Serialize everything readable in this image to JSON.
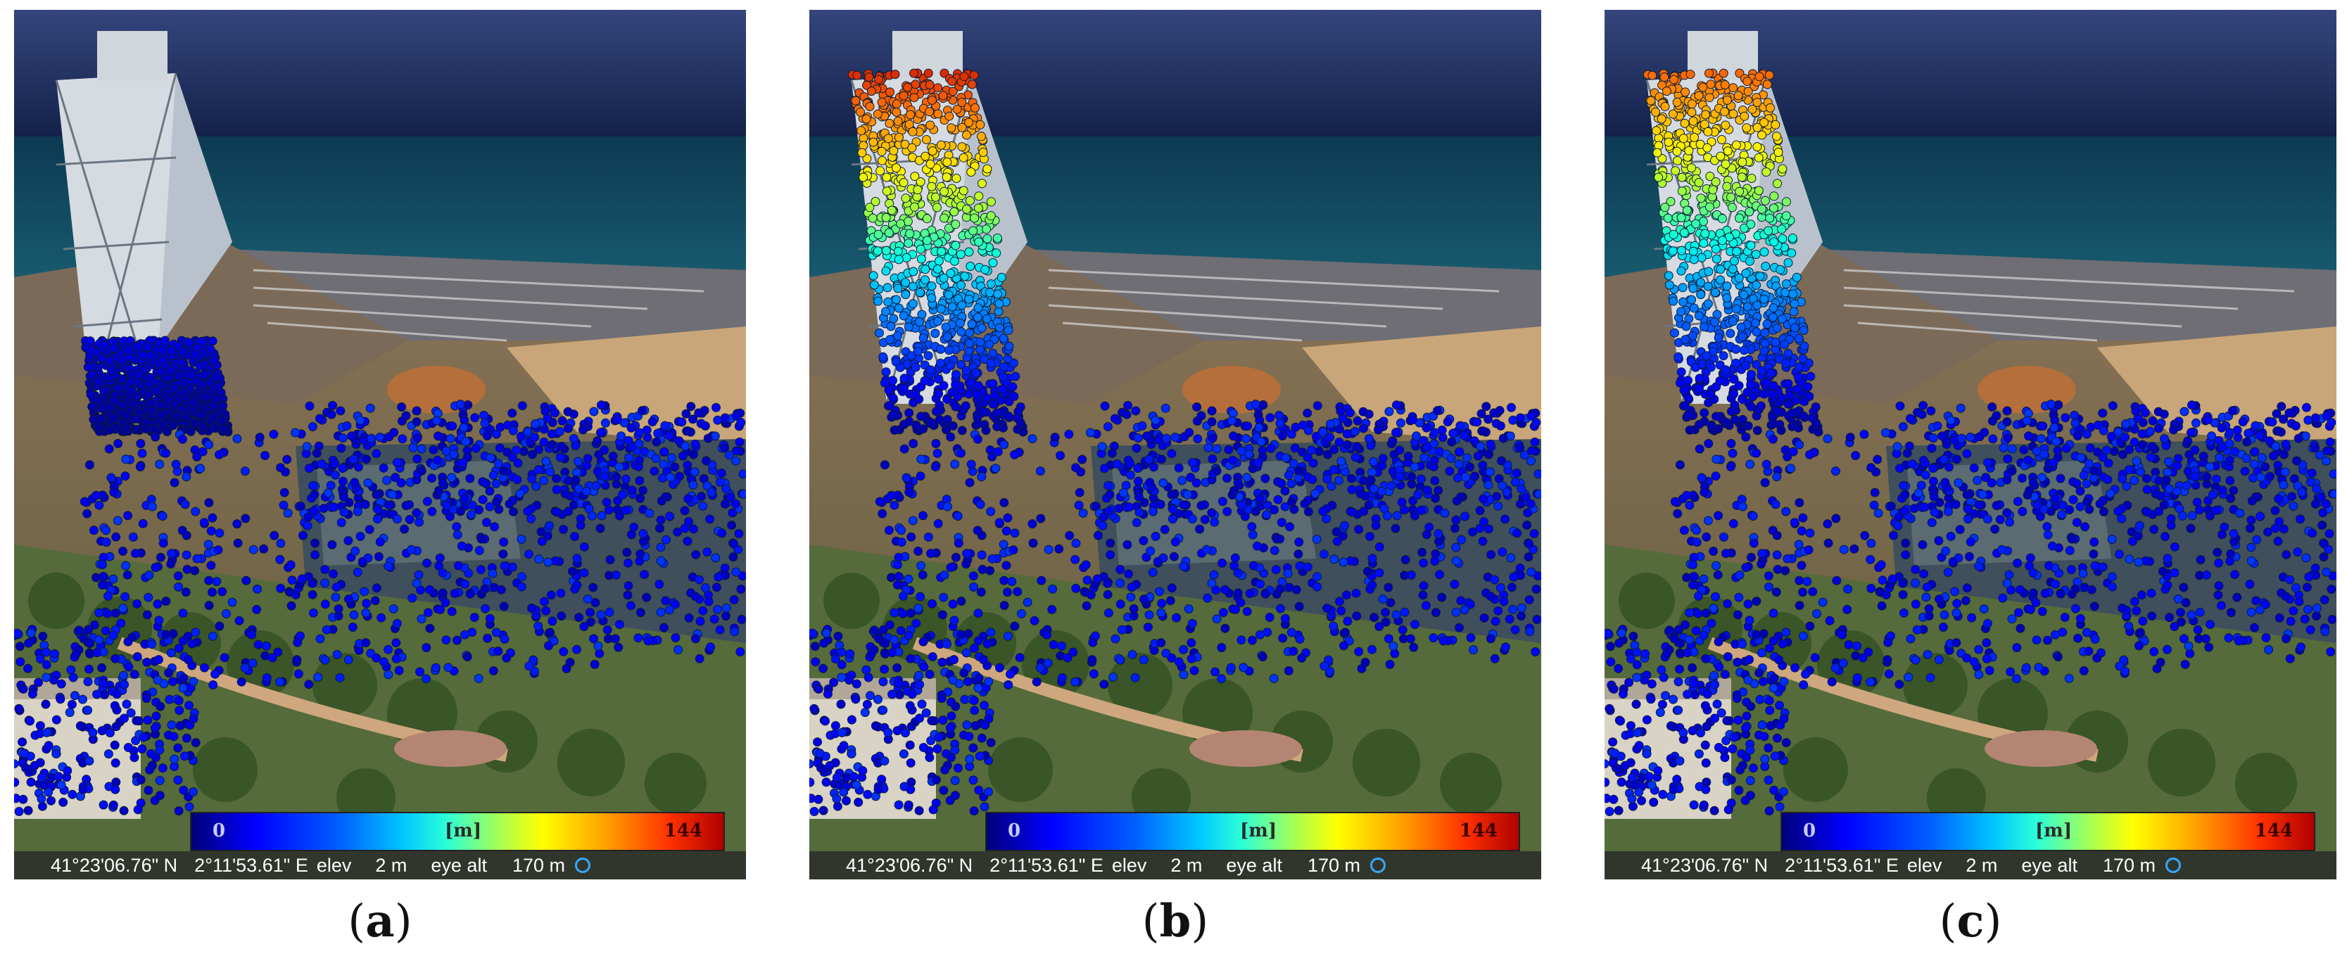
{
  "panels": [
    {
      "caption_open": "(",
      "caption_letter": "a",
      "caption_close": ")",
      "legend": {
        "min": "0",
        "unit": "[m]",
        "max": "144"
      },
      "status": {
        "lat": "41°23'06.76\" N",
        "lon": "2°11'53.61\" E",
        "elev_label": "elev",
        "elev_value": "2 m",
        "eye_label": "eye alt",
        "eye_value": "170 m"
      }
    },
    {
      "caption_open": "(",
      "caption_letter": "b",
      "caption_close": ")",
      "legend": {
        "min": "0",
        "unit": "[m]",
        "max": "144"
      },
      "status": {
        "lat": "41°23'06.76\" N",
        "lon": "2°11'53.61\" E",
        "elev_label": "elev",
        "elev_value": "2 m",
        "eye_label": "eye alt",
        "eye_value": "170 m"
      }
    },
    {
      "caption_open": "(",
      "caption_letter": "c",
      "caption_close": ")",
      "legend": {
        "min": "0",
        "unit": "[m]",
        "max": "144"
      },
      "status": {
        "lat": "41°23'06.76\" N",
        "lon": "2°11'53.61\" E",
        "elev_label": "elev",
        "elev_value": "2 m",
        "eye_label": "eye alt",
        "eye_value": "170 m"
      }
    }
  ],
  "colors": {
    "sky": "#2c3f75",
    "sea": "#0f3f55",
    "land": "#8a6a52",
    "trees": "#3d5a2c",
    "status_ring": "#36a8ff"
  }
}
